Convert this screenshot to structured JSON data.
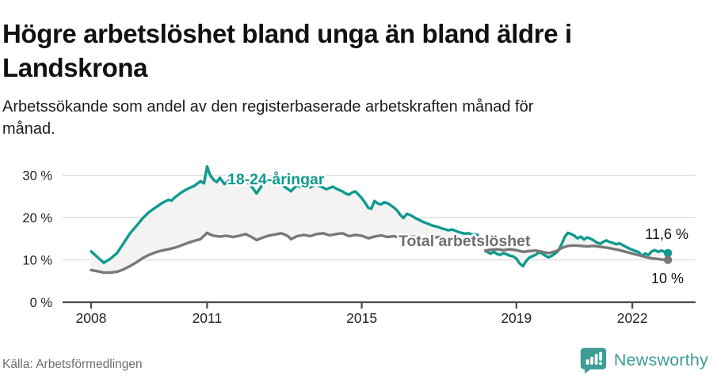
{
  "header": {
    "title": "Högre arbetslöshet bland unga än bland äldre i Landskrona",
    "subtitle": "Arbetssökande som andel av den registerbaserade arbetskraften månad för månad."
  },
  "footer": {
    "source": "Källa: Arbetsförmedlingen",
    "brand": "Newsworthy"
  },
  "colors": {
    "accent_teal": "#109a8f",
    "line_gray": "#787878",
    "label_gray": "#6f6f6f",
    "fill_between": "#f3f3f3",
    "gridline": "#d9d9d9",
    "axis": "#4a4a4a",
    "tick_text": "#222222",
    "value_text": "#111111",
    "brand_teal": "#3b9d96"
  },
  "chart_data": {
    "type": "line",
    "unit": "%",
    "grid": true,
    "x_axis": {
      "ticks": [
        2008,
        2011,
        2015,
        2019,
        2022
      ],
      "range": [
        2007.3,
        2023.6
      ]
    },
    "y_axis": {
      "ticks": [
        0,
        10,
        20,
        30
      ],
      "tick_labels": [
        "0 %",
        "10 %",
        "20 %",
        "30 %"
      ],
      "range": [
        0,
        33
      ]
    },
    "series": [
      {
        "name": "18-24-åringar",
        "color": "#109a8f",
        "end_label": "11,6 %",
        "end_value": 11.6,
        "segments": [
          [
            [
              2008.0,
              12.0
            ],
            [
              2008.17,
              10.6
            ],
            [
              2008.33,
              9.3
            ],
            [
              2008.5,
              10.3
            ],
            [
              2008.67,
              11.6
            ],
            [
              2008.83,
              13.8
            ],
            [
              2009.0,
              16.2
            ],
            [
              2009.17,
              18.0
            ],
            [
              2009.33,
              19.8
            ],
            [
              2009.5,
              21.3
            ],
            [
              2009.67,
              22.4
            ],
            [
              2009.83,
              23.4
            ],
            [
              2010.0,
              24.2
            ],
            [
              2010.08,
              24.0
            ],
            [
              2010.17,
              24.8
            ],
            [
              2010.33,
              25.9
            ],
            [
              2010.5,
              26.8
            ],
            [
              2010.67,
              27.5
            ],
            [
              2010.83,
              28.6
            ],
            [
              2010.92,
              28.1
            ],
            [
              2011.0,
              32.1
            ],
            [
              2011.08,
              30.0
            ],
            [
              2011.17,
              28.9
            ],
            [
              2011.25,
              28.4
            ],
            [
              2011.33,
              29.4
            ],
            [
              2011.45,
              27.9
            ],
            [
              2011.57,
              28.8
            ],
            [
              2011.67,
              28.3
            ],
            [
              2011.77,
              29.2
            ],
            [
              2011.87,
              28.6
            ],
            [
              2012.0,
              29.0
            ],
            [
              2012.08,
              28.0
            ],
            [
              2012.17,
              27.1
            ],
            [
              2012.28,
              25.7
            ],
            [
              2012.42,
              27.6
            ],
            [
              2012.5,
              28.2
            ],
            [
              2012.58,
              28.7
            ],
            [
              2012.67,
              28.4
            ],
            [
              2012.75,
              28.9
            ],
            [
              2012.83,
              28.4
            ],
            [
              2012.92,
              27.9
            ],
            [
              2013.0,
              27.3
            ],
            [
              2013.08,
              26.8
            ],
            [
              2013.17,
              26.2
            ],
            [
              2013.25,
              27.0
            ],
            [
              2013.33,
              27.6
            ],
            [
              2013.42,
              27.2
            ],
            [
              2013.5,
              27.9
            ],
            [
              2013.58,
              27.4
            ],
            [
              2013.67,
              27.1
            ],
            [
              2013.75,
              27.6
            ],
            [
              2013.83,
              27.9
            ],
            [
              2013.92,
              27.4
            ],
            [
              2014.0,
              27.1
            ],
            [
              2014.08,
              26.7
            ],
            [
              2014.17,
              27.0
            ],
            [
              2014.25,
              27.3
            ],
            [
              2014.33,
              26.9
            ],
            [
              2014.42,
              26.5
            ],
            [
              2014.5,
              26.2
            ],
            [
              2014.58,
              25.7
            ],
            [
              2014.67,
              25.4
            ],
            [
              2014.75,
              25.9
            ],
            [
              2014.83,
              26.2
            ],
            [
              2014.92,
              25.4
            ],
            [
              2015.0,
              24.6
            ],
            [
              2015.08,
              23.6
            ],
            [
              2015.17,
              22.3
            ],
            [
              2015.25,
              22.1
            ],
            [
              2015.33,
              23.9
            ],
            [
              2015.42,
              23.3
            ],
            [
              2015.5,
              23.1
            ],
            [
              2015.58,
              23.6
            ],
            [
              2015.67,
              23.4
            ],
            [
              2015.75,
              22.9
            ],
            [
              2015.83,
              22.4
            ],
            [
              2015.92,
              21.6
            ],
            [
              2016.0,
              20.6
            ],
            [
              2016.08,
              19.9
            ],
            [
              2016.17,
              20.9
            ],
            [
              2016.25,
              20.6
            ],
            [
              2016.33,
              20.2
            ],
            [
              2016.42,
              19.7
            ],
            [
              2016.5,
              19.4
            ],
            [
              2016.58,
              19.0
            ],
            [
              2016.67,
              18.7
            ],
            [
              2016.75,
              18.4
            ],
            [
              2016.83,
              18.1
            ],
            [
              2016.92,
              17.9
            ],
            [
              2017.0,
              17.7
            ],
            [
              2017.08,
              17.4
            ],
            [
              2017.17,
              17.2
            ],
            [
              2017.25,
              17.0
            ],
            [
              2017.33,
              17.2
            ],
            [
              2017.42,
              16.9
            ],
            [
              2017.5,
              16.6
            ],
            [
              2017.58,
              16.4
            ],
            [
              2017.67,
              16.2
            ],
            [
              2017.75,
              16.3
            ],
            [
              2017.83,
              16.1
            ],
            [
              2018.0,
              15.9
            ]
          ],
          [
            [
              2018.2,
              12.1
            ],
            [
              2018.33,
              11.5
            ],
            [
              2018.42,
              11.9
            ],
            [
              2018.5,
              11.4
            ],
            [
              2018.58,
              11.2
            ],
            [
              2018.67,
              11.6
            ],
            [
              2018.75,
              11.3
            ],
            [
              2018.83,
              11.0
            ],
            [
              2018.92,
              10.8
            ],
            [
              2019.0,
              10.3
            ],
            [
              2019.08,
              9.2
            ],
            [
              2019.17,
              8.5
            ],
            [
              2019.25,
              9.7
            ],
            [
              2019.33,
              10.5
            ],
            [
              2019.42,
              10.9
            ],
            [
              2019.5,
              11.2
            ],
            [
              2019.58,
              11.8
            ],
            [
              2019.67,
              11.5
            ],
            [
              2019.75,
              11.0
            ],
            [
              2019.83,
              10.6
            ],
            [
              2019.92,
              11.0
            ],
            [
              2020.0,
              11.5
            ],
            [
              2020.08,
              12.1
            ],
            [
              2020.17,
              13.7
            ],
            [
              2020.25,
              15.4
            ],
            [
              2020.33,
              16.4
            ],
            [
              2020.42,
              16.1
            ],
            [
              2020.5,
              15.7
            ],
            [
              2020.58,
              15.1
            ],
            [
              2020.67,
              15.5
            ],
            [
              2020.75,
              14.8
            ],
            [
              2020.83,
              15.3
            ],
            [
              2020.92,
              15.0
            ],
            [
              2021.0,
              14.6
            ],
            [
              2021.08,
              14.1
            ],
            [
              2021.17,
              13.8
            ],
            [
              2021.25,
              14.3
            ],
            [
              2021.33,
              14.6
            ],
            [
              2021.42,
              14.2
            ],
            [
              2021.5,
              14.0
            ],
            [
              2021.58,
              13.7
            ],
            [
              2021.67,
              13.9
            ],
            [
              2021.75,
              13.5
            ],
            [
              2021.83,
              13.1
            ],
            [
              2021.92,
              12.7
            ],
            [
              2022.0,
              12.4
            ],
            [
              2022.08,
              12.1
            ],
            [
              2022.17,
              11.8
            ],
            [
              2022.25,
              10.9
            ],
            [
              2022.33,
              11.5
            ],
            [
              2022.42,
              11.2
            ],
            [
              2022.5,
              12.0
            ],
            [
              2022.58,
              12.3
            ],
            [
              2022.67,
              11.9
            ],
            [
              2022.75,
              12.2
            ],
            [
              2022.83,
              11.9
            ],
            [
              2022.92,
              11.6
            ]
          ]
        ]
      },
      {
        "name": "Total arbetslöshet",
        "color": "#787878",
        "end_label": "10 %",
        "end_value": 10,
        "segments": [
          [
            [
              2008.0,
              7.6
            ],
            [
              2008.17,
              7.3
            ],
            [
              2008.33,
              7.0
            ],
            [
              2008.5,
              7.0
            ],
            [
              2008.67,
              7.2
            ],
            [
              2008.83,
              7.7
            ],
            [
              2009.0,
              8.5
            ],
            [
              2009.17,
              9.4
            ],
            [
              2009.33,
              10.4
            ],
            [
              2009.5,
              11.2
            ],
            [
              2009.67,
              11.8
            ],
            [
              2009.83,
              12.2
            ],
            [
              2010.0,
              12.5
            ],
            [
              2010.17,
              12.9
            ],
            [
              2010.33,
              13.4
            ],
            [
              2010.5,
              14.0
            ],
            [
              2010.67,
              14.5
            ],
            [
              2010.83,
              14.9
            ],
            [
              2011.0,
              16.4
            ],
            [
              2011.08,
              16.0
            ],
            [
              2011.17,
              15.7
            ],
            [
              2011.33,
              15.5
            ],
            [
              2011.5,
              15.7
            ],
            [
              2011.67,
              15.4
            ],
            [
              2011.83,
              15.7
            ],
            [
              2012.0,
              16.1
            ],
            [
              2012.17,
              15.3
            ],
            [
              2012.28,
              14.7
            ],
            [
              2012.42,
              15.2
            ],
            [
              2012.58,
              15.7
            ],
            [
              2012.75,
              16.0
            ],
            [
              2012.92,
              16.3
            ],
            [
              2013.08,
              15.7
            ],
            [
              2013.17,
              14.9
            ],
            [
              2013.33,
              15.6
            ],
            [
              2013.5,
              15.9
            ],
            [
              2013.67,
              15.6
            ],
            [
              2013.83,
              16.1
            ],
            [
              2014.0,
              16.3
            ],
            [
              2014.17,
              15.8
            ],
            [
              2014.33,
              16.1
            ],
            [
              2014.5,
              16.3
            ],
            [
              2014.67,
              15.6
            ],
            [
              2014.83,
              15.9
            ],
            [
              2015.0,
              15.7
            ],
            [
              2015.17,
              15.1
            ],
            [
              2015.33,
              15.5
            ],
            [
              2015.5,
              15.8
            ],
            [
              2015.67,
              15.4
            ],
            [
              2015.83,
              15.6
            ],
            [
              2016.0,
              15.2
            ],
            [
              2016.17,
              15.4
            ],
            [
              2016.33,
              15.5
            ],
            [
              2016.5,
              15.2
            ],
            [
              2016.67,
              15.0
            ],
            [
              2016.83,
              15.2
            ],
            [
              2017.0,
              15.4
            ],
            [
              2017.17,
              15.2
            ],
            [
              2017.33,
              15.0
            ],
            [
              2017.5,
              15.2
            ],
            [
              2017.67,
              15.1
            ],
            [
              2017.83,
              15.0
            ],
            [
              2018.0,
              15.1
            ]
          ],
          [
            [
              2018.2,
              12.2
            ],
            [
              2018.33,
              12.4
            ],
            [
              2018.5,
              12.5
            ],
            [
              2018.67,
              12.3
            ],
            [
              2018.83,
              12.5
            ],
            [
              2019.0,
              12.3
            ],
            [
              2019.17,
              11.9
            ],
            [
              2019.33,
              12.1
            ],
            [
              2019.5,
              12.2
            ],
            [
              2019.67,
              11.9
            ],
            [
              2019.83,
              11.6
            ],
            [
              2019.92,
              11.8
            ],
            [
              2020.0,
              12.0
            ],
            [
              2020.08,
              12.3
            ],
            [
              2020.17,
              12.8
            ],
            [
              2020.33,
              13.3
            ],
            [
              2020.5,
              13.4
            ],
            [
              2020.67,
              13.3
            ],
            [
              2020.83,
              13.2
            ],
            [
              2021.0,
              13.3
            ],
            [
              2021.17,
              13.1
            ],
            [
              2021.33,
              12.9
            ],
            [
              2021.5,
              12.6
            ],
            [
              2021.67,
              12.3
            ],
            [
              2021.83,
              11.9
            ],
            [
              2022.0,
              11.5
            ],
            [
              2022.17,
              11.1
            ],
            [
              2022.33,
              10.7
            ],
            [
              2022.5,
              10.4
            ],
            [
              2022.67,
              10.2
            ],
            [
              2022.83,
              10.0
            ],
            [
              2022.92,
              10.0
            ]
          ]
        ]
      }
    ]
  }
}
